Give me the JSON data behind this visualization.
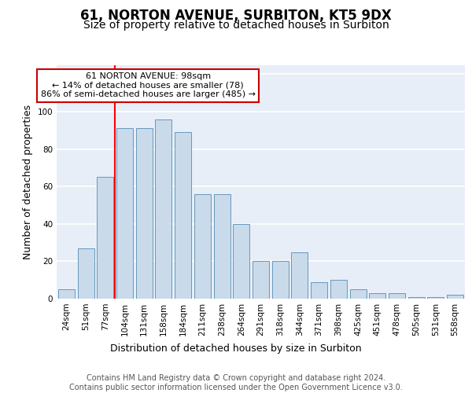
{
  "title": "61, NORTON AVENUE, SURBITON, KT5 9DX",
  "subtitle": "Size of property relative to detached houses in Surbiton",
  "xlabel": "Distribution of detached houses by size in Surbiton",
  "ylabel": "Number of detached properties",
  "categories": [
    "24sqm",
    "51sqm",
    "77sqm",
    "104sqm",
    "131sqm",
    "158sqm",
    "184sqm",
    "211sqm",
    "238sqm",
    "264sqm",
    "291sqm",
    "318sqm",
    "344sqm",
    "371sqm",
    "398sqm",
    "425sqm",
    "451sqm",
    "478sqm",
    "505sqm",
    "531sqm",
    "558sqm"
  ],
  "values": [
    5,
    27,
    65,
    91,
    91,
    96,
    89,
    56,
    56,
    40,
    20,
    20,
    25,
    9,
    10,
    5,
    3,
    3,
    1,
    1,
    2
  ],
  "bar_color": "#c9daea",
  "bar_edge_color": "#6699bb",
  "redline_x": 2.5,
  "annotation_text": "61 NORTON AVENUE: 98sqm\n← 14% of detached houses are smaller (78)\n86% of semi-detached houses are larger (485) →",
  "annotation_box_facecolor": "#ffffff",
  "annotation_box_edgecolor": "#cc0000",
  "ylim": [
    0,
    125
  ],
  "yticks": [
    0,
    20,
    40,
    60,
    80,
    100,
    120
  ],
  "bg_color": "#e8eef8",
  "grid_color": "#ffffff",
  "footer": "Contains HM Land Registry data © Crown copyright and database right 2024.\nContains public sector information licensed under the Open Government Licence v3.0.",
  "title_fontsize": 12,
  "subtitle_fontsize": 10,
  "xlabel_fontsize": 9,
  "ylabel_fontsize": 9,
  "footer_fontsize": 7,
  "tick_fontsize": 7.5
}
